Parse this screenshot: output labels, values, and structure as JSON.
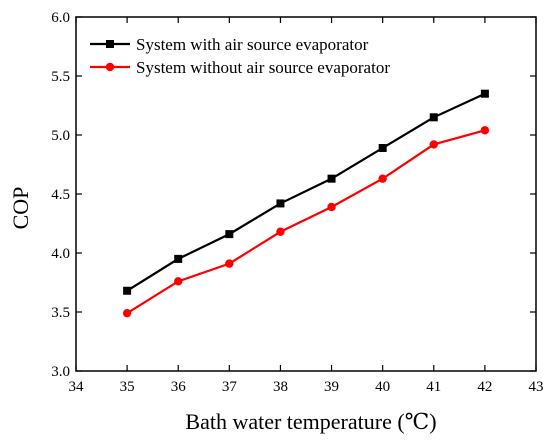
{
  "chart_data": {
    "type": "line",
    "xlabel": "Bath water temperature (℃)",
    "ylabel": "COP",
    "xlim": [
      34,
      43
    ],
    "ylim": [
      3.0,
      6.0
    ],
    "x_ticks": [
      "34",
      "35",
      "36",
      "37",
      "38",
      "39",
      "40",
      "41",
      "42",
      "43"
    ],
    "y_ticks": [
      "3.0",
      "3.5",
      "4.0",
      "4.5",
      "5.0",
      "5.5",
      "6.0"
    ],
    "x": [
      35,
      36,
      37,
      38,
      39,
      40,
      41,
      42
    ],
    "grid": false,
    "legend_position": "top-left",
    "series": [
      {
        "name": "System with air source evaporator",
        "color": "#000000",
        "marker": "square",
        "values": [
          3.68,
          3.95,
          4.16,
          4.42,
          4.63,
          4.89,
          5.15,
          5.35
        ]
      },
      {
        "name": "System without air source evaporator",
        "color": "#ff0000",
        "marker": "circle",
        "values": [
          3.49,
          3.76,
          3.91,
          4.18,
          4.39,
          4.63,
          4.92,
          5.04
        ]
      }
    ]
  }
}
